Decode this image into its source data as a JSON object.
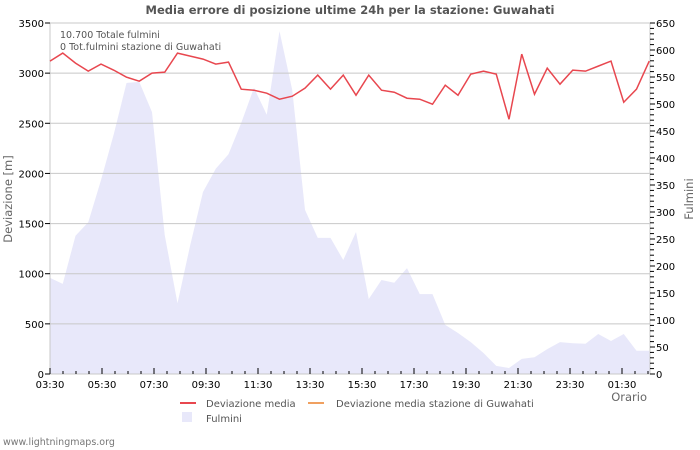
{
  "title": "Media errore di posizione ultime 24h per la stazione: Guwahati",
  "footer": "www.lightningmaps.org",
  "annotations": [
    "10.700 Totale fulmini",
    "0 Tot.fulmini stazione di Guwahati"
  ],
  "colors": {
    "deviation_line": "#e8474f",
    "station_line": "#f0a060",
    "lightning_fill": "#e8e8fa",
    "grid": "#c8c8c8"
  },
  "chart_data": {
    "type": "line",
    "title": "Media errore di posizione ultime 24h per la stazione: Guwahati",
    "xlabel": "Orario",
    "ylabel": "Deviazione  [m]",
    "y2label": "Fulmini",
    "ylim": [
      0,
      3500
    ],
    "y2lim": [
      0,
      650
    ],
    "grid": true,
    "legend_position": "bottom",
    "x_tick_labels": [
      "03:30",
      "05:30",
      "07:30",
      "09:30",
      "11:30",
      "13:30",
      "15:30",
      "17:30",
      "19:30",
      "21:30",
      "23:30",
      "01:30"
    ],
    "y_tick_labels": [
      "0",
      "500",
      "1000",
      "1500",
      "2000",
      "2500",
      "3000",
      "3500"
    ],
    "y2_tick_labels": [
      "0",
      "50",
      "100",
      "150",
      "200",
      "250",
      "300",
      "350",
      "400",
      "450",
      "500",
      "550",
      "600",
      "650"
    ],
    "legend": [
      "Deviazione media",
      "Deviazione media stazione di Guwahati",
      "Fulmini"
    ],
    "x": [
      "03:30",
      "04:00",
      "04:30",
      "05:00",
      "05:30",
      "06:00",
      "06:30",
      "07:00",
      "07:30",
      "08:00",
      "08:30",
      "09:00",
      "09:30",
      "10:00",
      "10:30",
      "11:00",
      "11:30",
      "12:00",
      "12:30",
      "13:00",
      "13:30",
      "14:00",
      "14:30",
      "15:00",
      "15:30",
      "16:00",
      "16:30",
      "17:00",
      "17:30",
      "18:00",
      "18:30",
      "19:00",
      "19:30",
      "20:00",
      "20:30",
      "21:00",
      "21:30",
      "22:00",
      "22:30",
      "23:00",
      "23:30",
      "00:00",
      "00:30",
      "01:00",
      "01:30",
      "02:00",
      "02:30",
      "03:00"
    ],
    "series": [
      {
        "name": "Deviazione media",
        "axis": "left",
        "values": [
          3120,
          3200,
          3100,
          3020,
          3090,
          3030,
          2960,
          2920,
          3000,
          3010,
          3200,
          3170,
          3140,
          3090,
          3110,
          2840,
          2830,
          2800,
          2740,
          2770,
          2850,
          2980,
          2840,
          2980,
          2780,
          2980,
          2830,
          2810,
          2750,
          2740,
          2690,
          2880,
          2780,
          2990,
          3020,
          2990,
          2540,
          3190,
          2790,
          3050,
          2890,
          3030,
          3020,
          3070,
          3120,
          2710,
          2840,
          3120
        ]
      },
      {
        "name": "Deviazione media stazione di Guwahati",
        "axis": "left",
        "values": []
      },
      {
        "name": "Fulmini",
        "axis": "right",
        "type": "area",
        "values": [
          178,
          167,
          256,
          281,
          359,
          444,
          539,
          541,
          485,
          257,
          131,
          239,
          337,
          380,
          407,
          465,
          530,
          480,
          635,
          526,
          304,
          252,
          252,
          211,
          263,
          139,
          174,
          169,
          196,
          148,
          148,
          91,
          76,
          59,
          39,
          15,
          11,
          28,
          31,
          46,
          59,
          57,
          56,
          74,
          61,
          74,
          43,
          43
        ]
      }
    ]
  }
}
